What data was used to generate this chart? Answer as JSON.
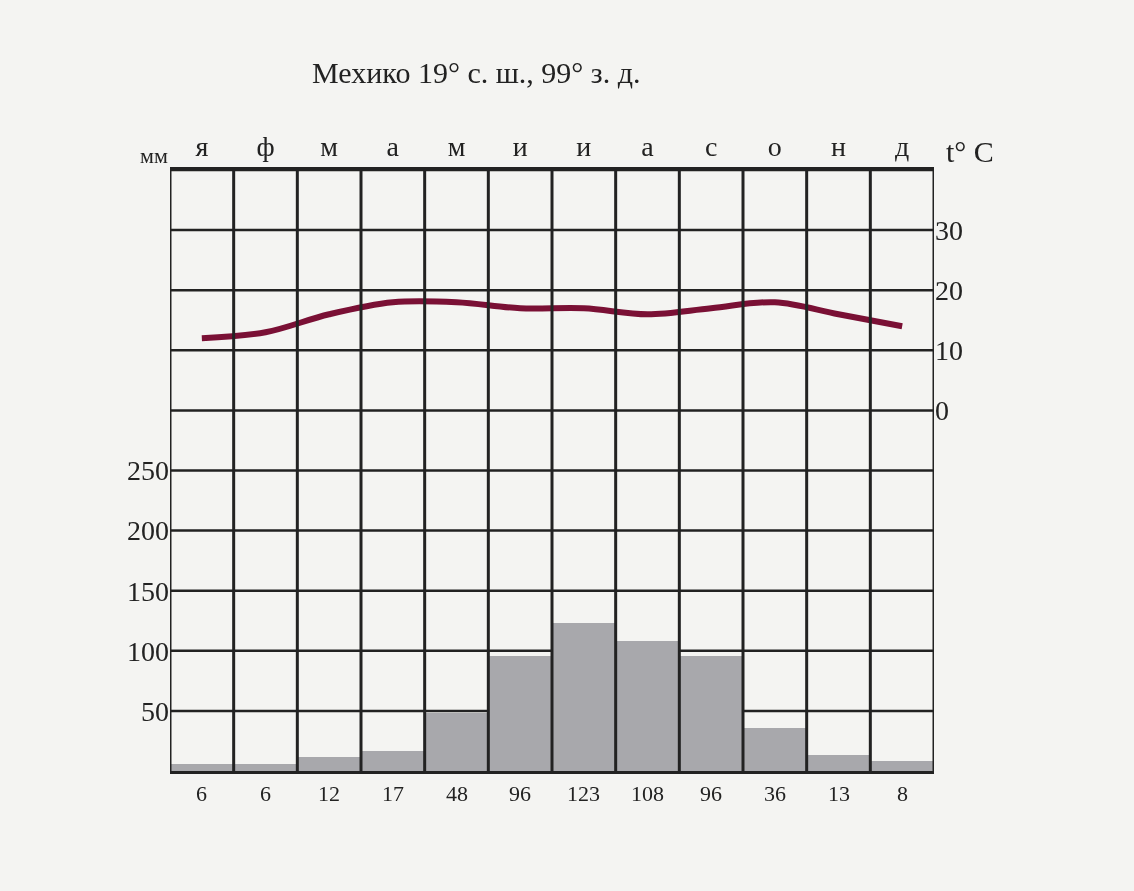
{
  "chart_data": {
    "type": "bar",
    "title": "Мехико 19° с. ш., 99° з. д.",
    "ylabel": "мм",
    "y2label": "t° C",
    "categories": [
      "я",
      "ф",
      "м",
      "а",
      "м",
      "и",
      "и",
      "а",
      "с",
      "о",
      "н",
      "д"
    ],
    "series": [
      {
        "color": "#a8a8ac",
        "values": [
          6,
          6,
          12,
          17,
          48,
          96,
          123,
          108,
          96,
          36,
          13,
          8
        ],
        "value_labels": [
          "6",
          "6",
          "12",
          "17",
          "48",
          "96",
          "123",
          "108",
          "96",
          "36",
          "13",
          "8"
        ]
      },
      {
        "type": "line",
        "axis": "y2",
        "color": "#7a1035",
        "values": [
          12,
          13,
          16,
          18,
          18,
          17,
          17,
          16,
          17,
          18,
          16,
          14
        ]
      }
    ],
    "ylim": [
      0,
      500
    ],
    "yticks": [
      50,
      100,
      150,
      200,
      250
    ],
    "y2lim": [
      -60,
      40
    ],
    "y2ticks": [
      0,
      10,
      20,
      30
    ],
    "grid": true,
    "marker": "none",
    "line_style": "solid"
  }
}
